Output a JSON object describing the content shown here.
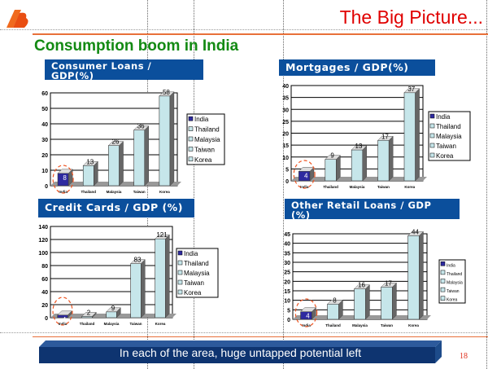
{
  "header": {
    "title": "The Big Picture...",
    "subtitle": "Consumption boom in India",
    "logo": "bank-of-baroda-logo"
  },
  "footer": {
    "message": "In each of the area, huge untapped potential left",
    "page_number": "18"
  },
  "colors": {
    "india": "#2e2aa0",
    "others": "#c6e6ea",
    "title_bar": "#0b4f9c",
    "accent": "#e8703a"
  },
  "chart_data": [
    {
      "type": "bar",
      "title": "Consumer Loans / GDP(%)",
      "categories": [
        "India",
        "Thailand",
        "Malaysia",
        "Taiwan",
        "Korea"
      ],
      "values": [
        8,
        13,
        26,
        36,
        58
      ],
      "ylim": [
        0,
        60
      ],
      "yticks": [
        0,
        10,
        20,
        30,
        40,
        50,
        60
      ],
      "legend": [
        "India",
        "Thailand",
        "Malaysia",
        "Taiwan",
        "Korea"
      ],
      "legend_position": "right",
      "grid": true,
      "highlight": "India"
    },
    {
      "type": "bar",
      "title": "Mortgages / GDP(%)",
      "categories": [
        "India",
        "Thailand",
        "Malaysia",
        "Taiwan",
        "Korea"
      ],
      "values": [
        4,
        9,
        13,
        17,
        37
      ],
      "ylim": [
        0,
        40
      ],
      "yticks": [
        0,
        5,
        10,
        15,
        20,
        25,
        30,
        35,
        40
      ],
      "legend": [
        "India",
        "Thailand",
        "Malaysia",
        "Taiwan",
        "Korea"
      ],
      "legend_position": "right",
      "grid": true,
      "highlight": "India"
    },
    {
      "type": "bar",
      "title": "Credit Cards / GDP (%)",
      "categories": [
        "India",
        "Thailand",
        "Malaysia",
        "Taiwan",
        "Korea"
      ],
      "values": [
        4,
        2,
        9,
        83,
        121
      ],
      "ylim": [
        0,
        140
      ],
      "yticks": [
        0,
        20,
        40,
        60,
        80,
        100,
        120,
        140
      ],
      "legend": [
        "India",
        "Thailand",
        "Malaysia",
        "Taiwan",
        "Korea"
      ],
      "legend_position": "right",
      "grid": true,
      "highlight": "India"
    },
    {
      "type": "bar",
      "title": "Other Retail Loans / GDP (%)",
      "categories": [
        "India",
        "Thailand",
        "Malaysia",
        "Taiwan",
        "Korea"
      ],
      "values": [
        4,
        8,
        16,
        17,
        44
      ],
      "ylim": [
        0,
        45
      ],
      "yticks": [
        0,
        5,
        10,
        15,
        20,
        25,
        30,
        35,
        40,
        45
      ],
      "legend": [
        "India",
        "Thailand",
        "Malaysia",
        "Taiwan",
        "Korea"
      ],
      "legend_position": "right",
      "grid": true,
      "highlight": "India"
    }
  ]
}
